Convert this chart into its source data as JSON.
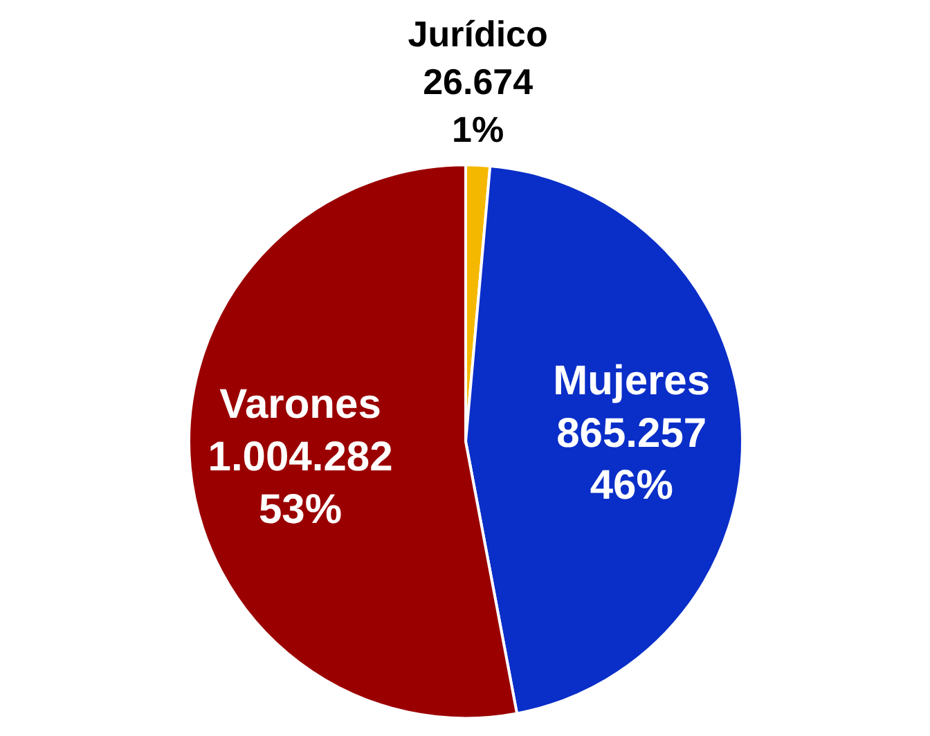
{
  "chart_data": {
    "type": "pie",
    "categories": [
      "Jurídico",
      "Mujeres",
      "Varones"
    ],
    "values": [
      26674,
      865257,
      1004282
    ],
    "colors": [
      "#f5b800",
      "#0a2ec8",
      "#9b0000"
    ],
    "value_labels": [
      "26.674\n1%",
      "865.257\n46%",
      "1.004.282\n53%"
    ]
  }
}
